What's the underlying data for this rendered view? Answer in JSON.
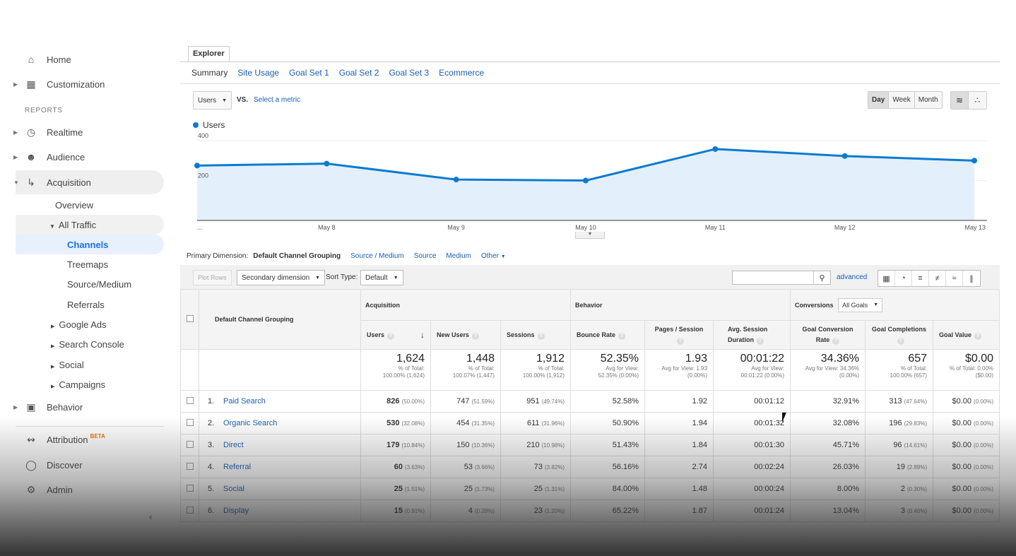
{
  "sidebar": {
    "home": "Home",
    "customization": "Customization",
    "reports_label": "REPORTS",
    "realtime": "Realtime",
    "audience": "Audience",
    "acquisition": "Acquisition",
    "overview": "Overview",
    "all_traffic": "All Traffic",
    "channels": "Channels",
    "treemaps": "Treemaps",
    "source_medium": "Source/Medium",
    "referrals": "Referrals",
    "google_ads": "Google Ads",
    "search_console": "Search Console",
    "social": "Social",
    "campaigns": "Campaigns",
    "behavior": "Behavior",
    "attribution": "Attribution",
    "beta": "BETA",
    "discover": "Discover",
    "admin": "Admin"
  },
  "explorer": {
    "tab": "Explorer",
    "subtabs": [
      "Summary",
      "Site Usage",
      "Goal Set 1",
      "Goal Set 2",
      "Goal Set 3",
      "Ecommerce"
    ],
    "metric": "Users",
    "vs": "VS.",
    "select_metric": "Select a metric",
    "periods": [
      "Day",
      "Week",
      "Month"
    ]
  },
  "chart_data": {
    "type": "area",
    "x": [
      "...",
      "May 8",
      "May 9",
      "May 10",
      "May 11",
      "May 12",
      "May 13"
    ],
    "series": [
      {
        "name": "Users",
        "values": [
          275,
          285,
          205,
          200,
          358,
          323,
          300
        ]
      }
    ],
    "ylim": [
      0,
      450
    ],
    "yticks": [
      "200",
      "400"
    ],
    "color": "#0a7bd1",
    "fill": "#e3f0fb"
  },
  "dimensions": {
    "label": "Primary Dimension:",
    "current": "Default Channel Grouping",
    "links": [
      "Source / Medium",
      "Source",
      "Medium",
      "Other"
    ]
  },
  "toolbar": {
    "plot_rows": "Plot Rows",
    "secondary": "Secondary dimension",
    "sort_label": "Sort Type:",
    "sort_value": "Default",
    "advanced": "advanced"
  },
  "table": {
    "group_acq": "Acquisition",
    "group_beh": "Behavior",
    "group_conv": "Conversions",
    "goal_select": "All Goals",
    "dim_header": "Default Channel Grouping",
    "headers": {
      "users": "Users",
      "new_users": "New Users",
      "sessions": "Sessions",
      "bounce": "Bounce Rate",
      "pages": "Pages / Session",
      "duration": "Avg. Session Duration",
      "gcr": "Goal Conversion Rate",
      "gc": "Goal Completions",
      "gv": "Goal Value"
    },
    "totals": {
      "users": "1,624",
      "users_sub": "% of Total:",
      "users_sub2": "100.00% (1,624)",
      "new_users": "1,448",
      "new_users_sub": "% of Total:",
      "new_users_sub2": "100.07% (1,447)",
      "sessions": "1,912",
      "sessions_sub": "% of Total:",
      "sessions_sub2": "100.00% (1,912)",
      "bounce": "52.35%",
      "bounce_sub": "Avg for View:",
      "bounce_sub2": "52.35% (0.00%)",
      "pages": "1.93",
      "pages_sub": "Avg for View: 1.93",
      "pages_sub2": "(0.00%)",
      "duration": "00:01:22",
      "duration_sub": "Avg for View:",
      "duration_sub2": "00:01:22 (0.00%)",
      "gcr": "34.36%",
      "gcr_sub": "Avg for View: 34.36%",
      "gcr_sub2": "(0.00%)",
      "gc": "657",
      "gc_sub": "% of Total:",
      "gc_sub2": "100.00% (657)",
      "gv": "$0.00",
      "gv_sub": "% of Total: 0.00%",
      "gv_sub2": "($0.00)"
    },
    "rows": [
      {
        "idx": "1.",
        "name": "Paid Search",
        "users": "826",
        "users_pct": "(50.00%)",
        "new_users": "747",
        "new_pct": "(51.59%)",
        "sessions": "951",
        "sess_pct": "(49.74%)",
        "bounce": "52.58%",
        "pages": "1.92",
        "duration": "00:01:12",
        "gcr": "32.91%",
        "gc": "313",
        "gc_pct": "(47.64%)",
        "gv": "$0.00",
        "gv_pct": "(0.00%)"
      },
      {
        "idx": "2.",
        "name": "Organic Search",
        "users": "530",
        "users_pct": "(32.08%)",
        "new_users": "454",
        "new_pct": "(31.35%)",
        "sessions": "611",
        "sess_pct": "(31.96%)",
        "bounce": "50.90%",
        "pages": "1.94",
        "duration": "00:01:32",
        "gcr": "32.08%",
        "gc": "196",
        "gc_pct": "(29.83%)",
        "gv": "$0.00",
        "gv_pct": "(0.00%)"
      },
      {
        "idx": "3.",
        "name": "Direct",
        "users": "179",
        "users_pct": "(10.84%)",
        "new_users": "150",
        "new_pct": "(10.36%)",
        "sessions": "210",
        "sess_pct": "(10.98%)",
        "bounce": "51.43%",
        "pages": "1.84",
        "duration": "00:01:30",
        "gcr": "45.71%",
        "gc": "96",
        "gc_pct": "(14.61%)",
        "gv": "$0.00",
        "gv_pct": "(0.00%)"
      },
      {
        "idx": "4.",
        "name": "Referral",
        "users": "60",
        "users_pct": "(3.63%)",
        "new_users": "53",
        "new_pct": "(3.66%)",
        "sessions": "73",
        "sess_pct": "(3.82%)",
        "bounce": "56.16%",
        "pages": "2.74",
        "duration": "00:02:24",
        "gcr": "26.03%",
        "gc": "19",
        "gc_pct": "(2.89%)",
        "gv": "$0.00",
        "gv_pct": "(0.00%)"
      },
      {
        "idx": "5.",
        "name": "Social",
        "users": "25",
        "users_pct": "(1.51%)",
        "new_users": "25",
        "new_pct": "(1.73%)",
        "sessions": "25",
        "sess_pct": "(1.31%)",
        "bounce": "84.00%",
        "pages": "1.48",
        "duration": "00:00:24",
        "gcr": "8.00%",
        "gc": "2",
        "gc_pct": "(0.30%)",
        "gv": "$0.00",
        "gv_pct": "(0.00%)"
      },
      {
        "idx": "6.",
        "name": "Display",
        "users": "15",
        "users_pct": "(0.91%)",
        "new_users": "4",
        "new_pct": "(0.28%)",
        "sessions": "23",
        "sess_pct": "(1.20%)",
        "bounce": "65.22%",
        "pages": "1.87",
        "duration": "00:01:24",
        "gcr": "13.04%",
        "gc": "3",
        "gc_pct": "(0.46%)",
        "gv": "$0.00",
        "gv_pct": "(0.00%)"
      }
    ]
  }
}
